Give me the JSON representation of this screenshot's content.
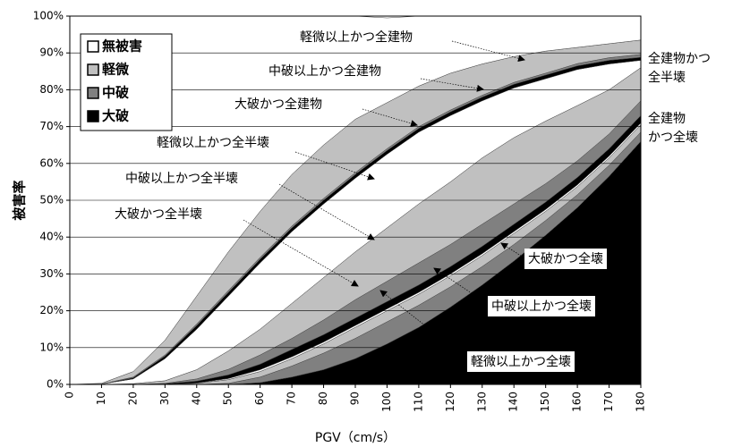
{
  "chart_data": {
    "type": "stacked_area",
    "xlabel": "PGV（cm/s）",
    "ylabel": "被害率",
    "x": [
      0,
      10,
      20,
      30,
      40,
      50,
      60,
      70,
      80,
      90,
      100,
      110,
      120,
      130,
      140,
      150,
      160,
      170,
      180
    ],
    "xlim": [
      0,
      180
    ],
    "xticks": [
      0,
      10,
      20,
      30,
      40,
      50,
      60,
      70,
      80,
      90,
      100,
      110,
      120,
      130,
      140,
      150,
      160,
      170,
      180
    ],
    "ylim": [
      0,
      100
    ],
    "yticks": [
      {
        "value": 0,
        "label": "0%"
      },
      {
        "value": 10,
        "label": "10%"
      },
      {
        "value": 20,
        "label": "20%"
      },
      {
        "value": 30,
        "label": "30%"
      },
      {
        "value": 40,
        "label": "40%"
      },
      {
        "value": 50,
        "label": "50%"
      },
      {
        "value": 60,
        "label": "60%"
      },
      {
        "value": 70,
        "label": "70%"
      },
      {
        "value": 80,
        "label": "80%"
      },
      {
        "value": 90,
        "label": "90%"
      },
      {
        "value": 100,
        "label": "100%"
      }
    ],
    "grid": true,
    "legend": "upper left",
    "series": [
      {
        "name": "無被害",
        "color": "#ffffff"
      },
      {
        "name": "軽微",
        "color": "#c0c0c0"
      },
      {
        "name": "中破",
        "color": "#808080"
      },
      {
        "name": "大破",
        "color": "#000000"
      }
    ],
    "stacks": [
      [
        [
          0,
          0,
          0,
          0,
          0.1,
          0.3,
          0.5,
          0.5,
          0.5,
          0.5,
          0.5,
          0.5,
          0.5,
          0.5,
          0.5,
          0.5,
          0.5,
          0.5,
          0.5
        ],
        [
          0,
          0,
          0,
          0,
          0.3,
          1,
          1.5,
          2,
          2.5,
          3,
          3,
          3,
          3,
          3,
          3,
          2.5,
          2.2,
          2,
          2
        ],
        [
          0,
          0,
          0,
          0,
          0,
          0.3,
          1.5,
          3,
          4.5,
          5.5,
          6,
          6,
          5.5,
          5,
          4.5,
          4,
          3.5,
          3,
          2.5
        ],
        [
          0,
          0,
          0,
          0,
          0,
          0,
          0.5,
          2,
          4,
          7,
          11,
          15.5,
          21,
          27,
          33.5,
          40.5,
          48,
          56.5,
          66
        ]
      ],
      [
        [
          0,
          0.1,
          1.3,
          6,
          11,
          14.9,
          18,
          19.5,
          20,
          20,
          20,
          19.5,
          18,
          15.5,
          13.5,
          11.5,
          9.8,
          7,
          2
        ],
        [
          0,
          0,
          0.2,
          0.7,
          2.5,
          5,
          7,
          9.5,
          11.5,
          13,
          14.5,
          16,
          17,
          18,
          18,
          17,
          15,
          12,
          9
        ],
        [
          0,
          0,
          0,
          0.1,
          0.6,
          1.5,
          2.5,
          3,
          4,
          5,
          5.5,
          6,
          6,
          6,
          5.5,
          5,
          4.5,
          4,
          4
        ],
        [
          0,
          0,
          0,
          0.2,
          0.5,
          1,
          1.5,
          2,
          2,
          2,
          2,
          2,
          2,
          2,
          2,
          2,
          2,
          2,
          2
        ]
      ],
      [
        [
          100,
          99.7,
          96.5,
          88,
          76,
          64,
          53,
          43,
          35,
          28,
          23,
          19,
          15.5,
          13,
          11,
          9.5,
          8.5,
          7.5,
          6.5
        ],
        [
          0,
          0.2,
          1.5,
          4,
          7.6,
          10.5,
          12.5,
          14,
          14.5,
          14.5,
          12.5,
          11,
          10,
          8.5,
          7,
          6,
          4.4,
          3.8,
          3.9
        ],
        [
          0,
          0,
          0.2,
          0.3,
          0.4,
          0.5,
          0.5,
          0.5,
          0.5,
          0.5,
          0.5,
          0.5,
          0.5,
          0.5,
          0.5,
          0.5,
          0.6,
          0.7,
          0.8
        ],
        [
          0,
          0,
          0.3,
          0.7,
          1,
          1,
          1,
          1,
          1,
          1,
          1,
          1,
          1,
          1,
          1,
          1,
          1,
          1,
          0.8
        ]
      ]
    ],
    "annotations": [
      [
        "軽微以上かつ全建物"
      ],
      [
        "中破以上かつ全建物"
      ],
      [
        "大破かつ全建物"
      ],
      [
        "軽微以上かつ全半壊"
      ],
      [
        "中破以上かつ全半壊"
      ],
      [
        "大破かつ全半壊"
      ],
      [
        "全建物かつ",
        "全半壊"
      ],
      [
        "全建物",
        "かつ全壊"
      ],
      [
        "大破かつ全壊"
      ],
      [
        "中破以上かつ全壊"
      ],
      [
        "軽微以上かつ全壊"
      ]
    ]
  }
}
